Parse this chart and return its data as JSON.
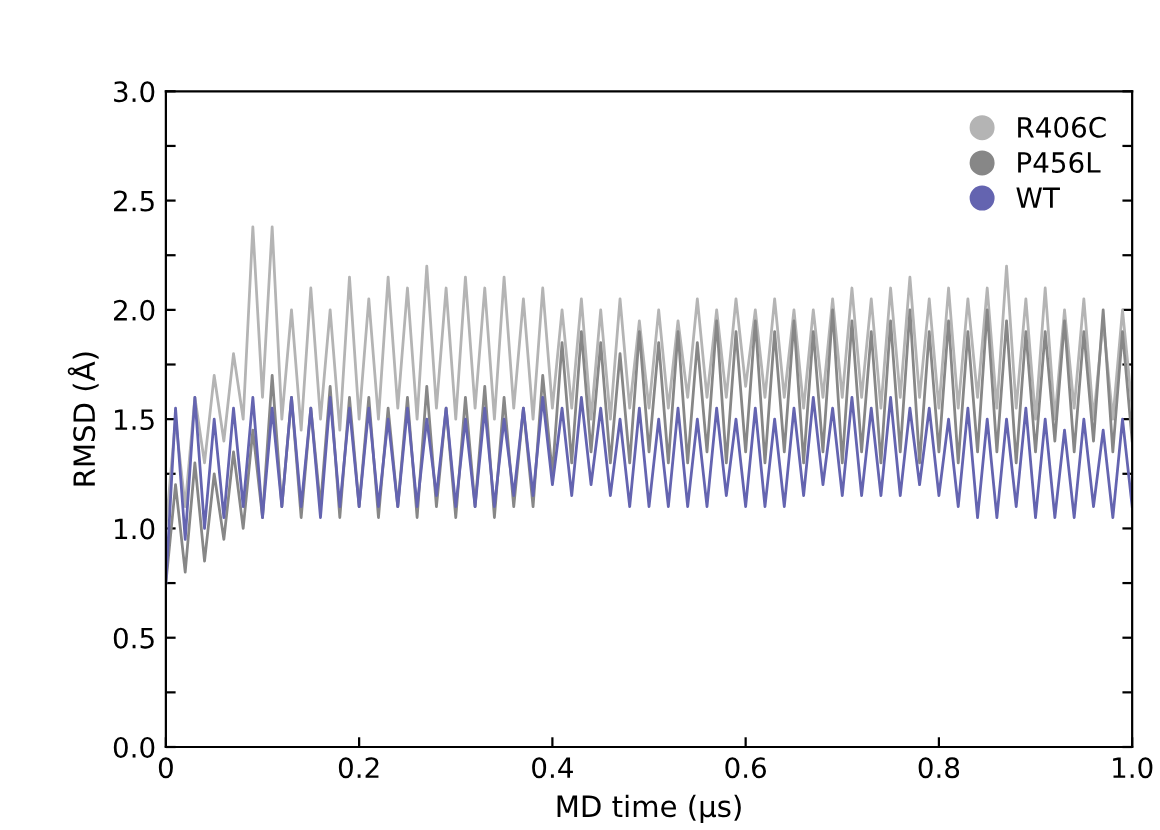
{
  "chart_data": {
    "type": "line",
    "xlabel": "MD time (µs)",
    "ylabel": "RMSD (Å)",
    "x": [
      0,
      0.01,
      0.02,
      0.03,
      0.04,
      0.05,
      0.06,
      0.07,
      0.08,
      0.09,
      0.1,
      0.11,
      0.12,
      0.13,
      0.14,
      0.15,
      0.16,
      0.17,
      0.18,
      0.19,
      0.2,
      0.21,
      0.22,
      0.23,
      0.24,
      0.25,
      0.26,
      0.27,
      0.28,
      0.29,
      0.3,
      0.31,
      0.32,
      0.33,
      0.34,
      0.35,
      0.36,
      0.37,
      0.38,
      0.39,
      0.4,
      0.41,
      0.42,
      0.43,
      0.44,
      0.45,
      0.46,
      0.47,
      0.48,
      0.49,
      0.5,
      0.51,
      0.52,
      0.53,
      0.54,
      0.55,
      0.56,
      0.57,
      0.58,
      0.59,
      0.6,
      0.61,
      0.62,
      0.63,
      0.64,
      0.65,
      0.66,
      0.67,
      0.68,
      0.69,
      0.7,
      0.71,
      0.72,
      0.73,
      0.74,
      0.75,
      0.76,
      0.77,
      0.78,
      0.79,
      0.8,
      0.81,
      0.82,
      0.83,
      0.84,
      0.85,
      0.86,
      0.87,
      0.88,
      0.89,
      0.9,
      0.91,
      0.92,
      0.93,
      0.94,
      0.95,
      0.96,
      0.97,
      0.98,
      0.99,
      1.0
    ],
    "series": [
      {
        "name": "R406C",
        "color": "#b4b4b4",
        "values": [
          1.0,
          1.5,
          1.1,
          1.6,
          1.3,
          1.7,
          1.4,
          1.8,
          1.5,
          2.38,
          1.6,
          2.38,
          1.5,
          2.0,
          1.45,
          2.1,
          1.5,
          2.0,
          1.45,
          2.15,
          1.5,
          2.05,
          1.5,
          2.15,
          1.55,
          2.1,
          1.5,
          2.2,
          1.55,
          2.1,
          1.5,
          2.15,
          1.55,
          2.1,
          1.5,
          2.15,
          1.55,
          2.05,
          1.5,
          2.1,
          1.55,
          2.0,
          1.55,
          2.05,
          1.5,
          2.0,
          1.5,
          2.05,
          1.55,
          1.95,
          1.55,
          2.0,
          1.55,
          1.95,
          1.6,
          2.05,
          1.6,
          2.0,
          1.6,
          2.05,
          1.65,
          2.0,
          1.6,
          2.05,
          1.6,
          2.0,
          1.55,
          2.0,
          1.6,
          2.05,
          1.6,
          2.1,
          1.6,
          2.05,
          1.55,
          2.1,
          1.6,
          2.15,
          1.6,
          2.05,
          1.55,
          2.1,
          1.55,
          2.05,
          1.6,
          2.1,
          1.55,
          2.2,
          1.55,
          2.05,
          1.5,
          2.1,
          1.5,
          2.0,
          1.55,
          2.05,
          1.5,
          1.95,
          1.5,
          2.0,
          1.55
        ]
      },
      {
        "name": "P456L",
        "color": "#878787",
        "values": [
          0.75,
          1.2,
          0.8,
          1.3,
          0.85,
          1.25,
          0.95,
          1.35,
          1.0,
          1.45,
          1.05,
          1.7,
          1.1,
          1.6,
          1.05,
          1.55,
          1.1,
          1.65,
          1.05,
          1.6,
          1.1,
          1.6,
          1.05,
          1.55,
          1.1,
          1.6,
          1.05,
          1.65,
          1.1,
          1.55,
          1.05,
          1.6,
          1.1,
          1.65,
          1.05,
          1.6,
          1.1,
          1.55,
          1.1,
          1.7,
          1.25,
          1.85,
          1.3,
          1.9,
          1.35,
          1.85,
          1.3,
          1.8,
          1.3,
          1.9,
          1.35,
          1.85,
          1.3,
          1.9,
          1.3,
          1.85,
          1.35,
          1.95,
          1.3,
          1.9,
          1.35,
          1.95,
          1.3,
          1.9,
          1.35,
          1.95,
          1.3,
          1.9,
          1.35,
          2.0,
          1.3,
          1.95,
          1.35,
          1.9,
          1.3,
          1.95,
          1.35,
          2.0,
          1.3,
          1.9,
          1.35,
          1.95,
          1.3,
          1.9,
          1.35,
          2.0,
          1.35,
          1.95,
          1.3,
          1.9,
          1.35,
          1.9,
          1.4,
          1.95,
          1.35,
          1.9,
          1.4,
          2.0,
          1.35,
          1.9,
          1.4
        ]
      },
      {
        "name": "WT",
        "color": "#6464b0",
        "values": [
          0.75,
          1.55,
          0.95,
          1.6,
          1.0,
          1.5,
          1.05,
          1.55,
          1.1,
          1.6,
          1.05,
          1.55,
          1.1,
          1.6,
          1.1,
          1.55,
          1.05,
          1.6,
          1.1,
          1.55,
          1.1,
          1.55,
          1.1,
          1.5,
          1.1,
          1.55,
          1.1,
          1.5,
          1.15,
          1.55,
          1.1,
          1.5,
          1.1,
          1.55,
          1.1,
          1.5,
          1.15,
          1.55,
          1.15,
          1.6,
          1.2,
          1.55,
          1.15,
          1.6,
          1.2,
          1.55,
          1.15,
          1.5,
          1.1,
          1.55,
          1.1,
          1.5,
          1.1,
          1.55,
          1.1,
          1.5,
          1.1,
          1.55,
          1.15,
          1.5,
          1.1,
          1.55,
          1.1,
          1.5,
          1.1,
          1.55,
          1.15,
          1.6,
          1.2,
          1.55,
          1.15,
          1.6,
          1.15,
          1.55,
          1.15,
          1.6,
          1.15,
          1.55,
          1.2,
          1.55,
          1.15,
          1.5,
          1.1,
          1.55,
          1.05,
          1.5,
          1.05,
          1.5,
          1.1,
          1.55,
          1.05,
          1.5,
          1.05,
          1.45,
          1.05,
          1.5,
          1.1,
          1.45,
          1.05,
          1.5,
          1.1
        ]
      }
    ],
    "xlim": [
      0,
      1.0
    ],
    "ylim": [
      0,
      3.0
    ],
    "xticks": [
      0,
      0.2,
      0.4,
      0.6,
      0.8,
      {
        "value": 1.0,
        "label": "1.0"
      }
    ],
    "yticks": [
      {
        "value": 0,
        "label": "0.0"
      },
      {
        "value": 0.25,
        "label": null
      },
      {
        "value": 0.5,
        "label": "0.5"
      },
      {
        "value": 0.75,
        "label": null
      },
      {
        "value": 1.0,
        "label": "1.0"
      },
      {
        "value": 1.25,
        "label": null
      },
      {
        "value": 1.5,
        "label": "1.5"
      },
      {
        "value": 1.75,
        "label": null
      },
      {
        "value": 2.0,
        "label": "2.0"
      },
      {
        "value": 2.25,
        "label": null
      },
      {
        "value": 2.5,
        "label": "2.5"
      },
      {
        "value": 2.75,
        "label": null
      },
      {
        "value": 3.0,
        "label": "3.0"
      }
    ],
    "grid": false,
    "legend": "top right",
    "marker": "none",
    "line_style": "solid"
  }
}
